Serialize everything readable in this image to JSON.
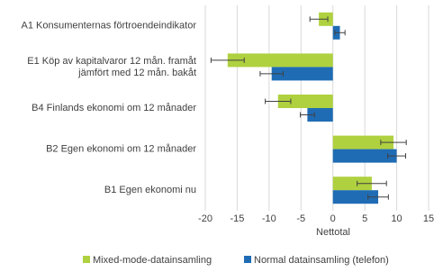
{
  "chart_data": {
    "type": "hbar",
    "categories": [
      "A1 Konsumenternas förtroendeindikator",
      [
        "E1 Köp av kapitalvaror 12 mån. framåt",
        "jämfört med 12 mån. bakåt"
      ],
      "B4 Finlands ekonomi om 12 månader",
      "B2 Egen ekonomi om 12 månader",
      "B1 Egen ekonomi nu"
    ],
    "series": [
      {
        "name": "Mixed-mode-datainsamling",
        "color": "#afd13f",
        "values": [
          -2.2,
          -16.5,
          -8.6,
          9.5,
          6.1
        ],
        "errors": [
          1.4,
          2.6,
          2.0,
          2.0,
          2.3
        ]
      },
      {
        "name": "Normal datainsamling (telefon)",
        "color": "#1f6cb5",
        "values": [
          1.1,
          -9.6,
          -4.0,
          10.0,
          7.1
        ],
        "errors": [
          0.8,
          1.8,
          1.1,
          1.4,
          1.6
        ]
      }
    ],
    "xlabel": "Nettotal",
    "xlim": [
      -20,
      15
    ],
    "xticks": [
      -20,
      -15,
      -10,
      -5,
      0,
      5,
      10,
      15
    ],
    "grid": true
  }
}
